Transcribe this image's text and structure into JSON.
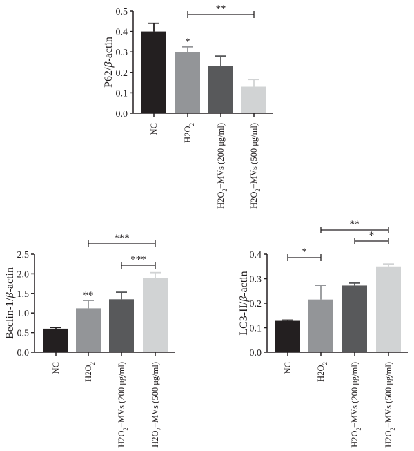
{
  "chart_data": [
    {
      "id": "p62",
      "type": "bar",
      "ylabel": "P62/β-actin",
      "ylim": [
        0,
        0.5
      ],
      "yticks": [
        "0.0",
        "0.1",
        "0.2",
        "0.3",
        "0.4",
        "0.5"
      ],
      "categories": [
        "NC",
        "H2O2",
        "H2O2+MVs (200 μg/ml)",
        "H2O2+MVs (500 μg/ml)"
      ],
      "values": [
        0.4,
        0.3,
        0.23,
        0.13
      ],
      "errors": [
        0.04,
        0.025,
        0.05,
        0.035
      ],
      "colors": [
        "#231f20",
        "#939598",
        "#58595b",
        "#d1d3d4"
      ],
      "bar_stars": [
        "",
        "*",
        "",
        ""
      ],
      "brackets": [
        {
          "from": 1,
          "to": 3,
          "label": "**"
        }
      ]
    },
    {
      "id": "beclin",
      "type": "bar",
      "ylabel": "Beclin-1/β-actin",
      "ylim": [
        0,
        2.5
      ],
      "yticks": [
        "0.0",
        "0.5",
        "1.0",
        "1.5",
        "2.0",
        "2.5"
      ],
      "categories": [
        "NC",
        "H2O2",
        "H2O2+MVs (200 μg/ml)",
        "H2O2+MVs (500 μg/ml)"
      ],
      "values": [
        0.6,
        1.12,
        1.35,
        1.9
      ],
      "errors": [
        0.03,
        0.2,
        0.18,
        0.13
      ],
      "colors": [
        "#231f20",
        "#939598",
        "#58595b",
        "#d1d3d4"
      ],
      "bar_stars": [
        "",
        "**",
        "",
        ""
      ],
      "brackets": [
        {
          "from": 1,
          "to": 3,
          "label": "***"
        },
        {
          "from": 2,
          "to": 3,
          "label": "***"
        }
      ]
    },
    {
      "id": "lc3",
      "type": "bar",
      "ylabel": "LC3-II/β-actin",
      "ylim": [
        0,
        0.4
      ],
      "yticks": [
        "0.0",
        "0.1",
        "0.2",
        "0.3",
        "0.4"
      ],
      "categories": [
        "NC",
        "H2O2",
        "H2O2+MVs (200 μg/ml)",
        "H2O2+MVs (500 μg/ml)"
      ],
      "values": [
        0.128,
        0.215,
        0.272,
        0.35
      ],
      "errors": [
        0.003,
        0.058,
        0.01,
        0.01
      ],
      "colors": [
        "#231f20",
        "#939598",
        "#58595b",
        "#d1d3d4"
      ],
      "bar_stars": [
        "",
        "",
        "",
        ""
      ],
      "brackets": [
        {
          "from": 0,
          "to": 1,
          "label": "*"
        },
        {
          "from": 1,
          "to": 3,
          "label": "**"
        },
        {
          "from": 2,
          "to": 3,
          "label": "*"
        }
      ]
    }
  ]
}
